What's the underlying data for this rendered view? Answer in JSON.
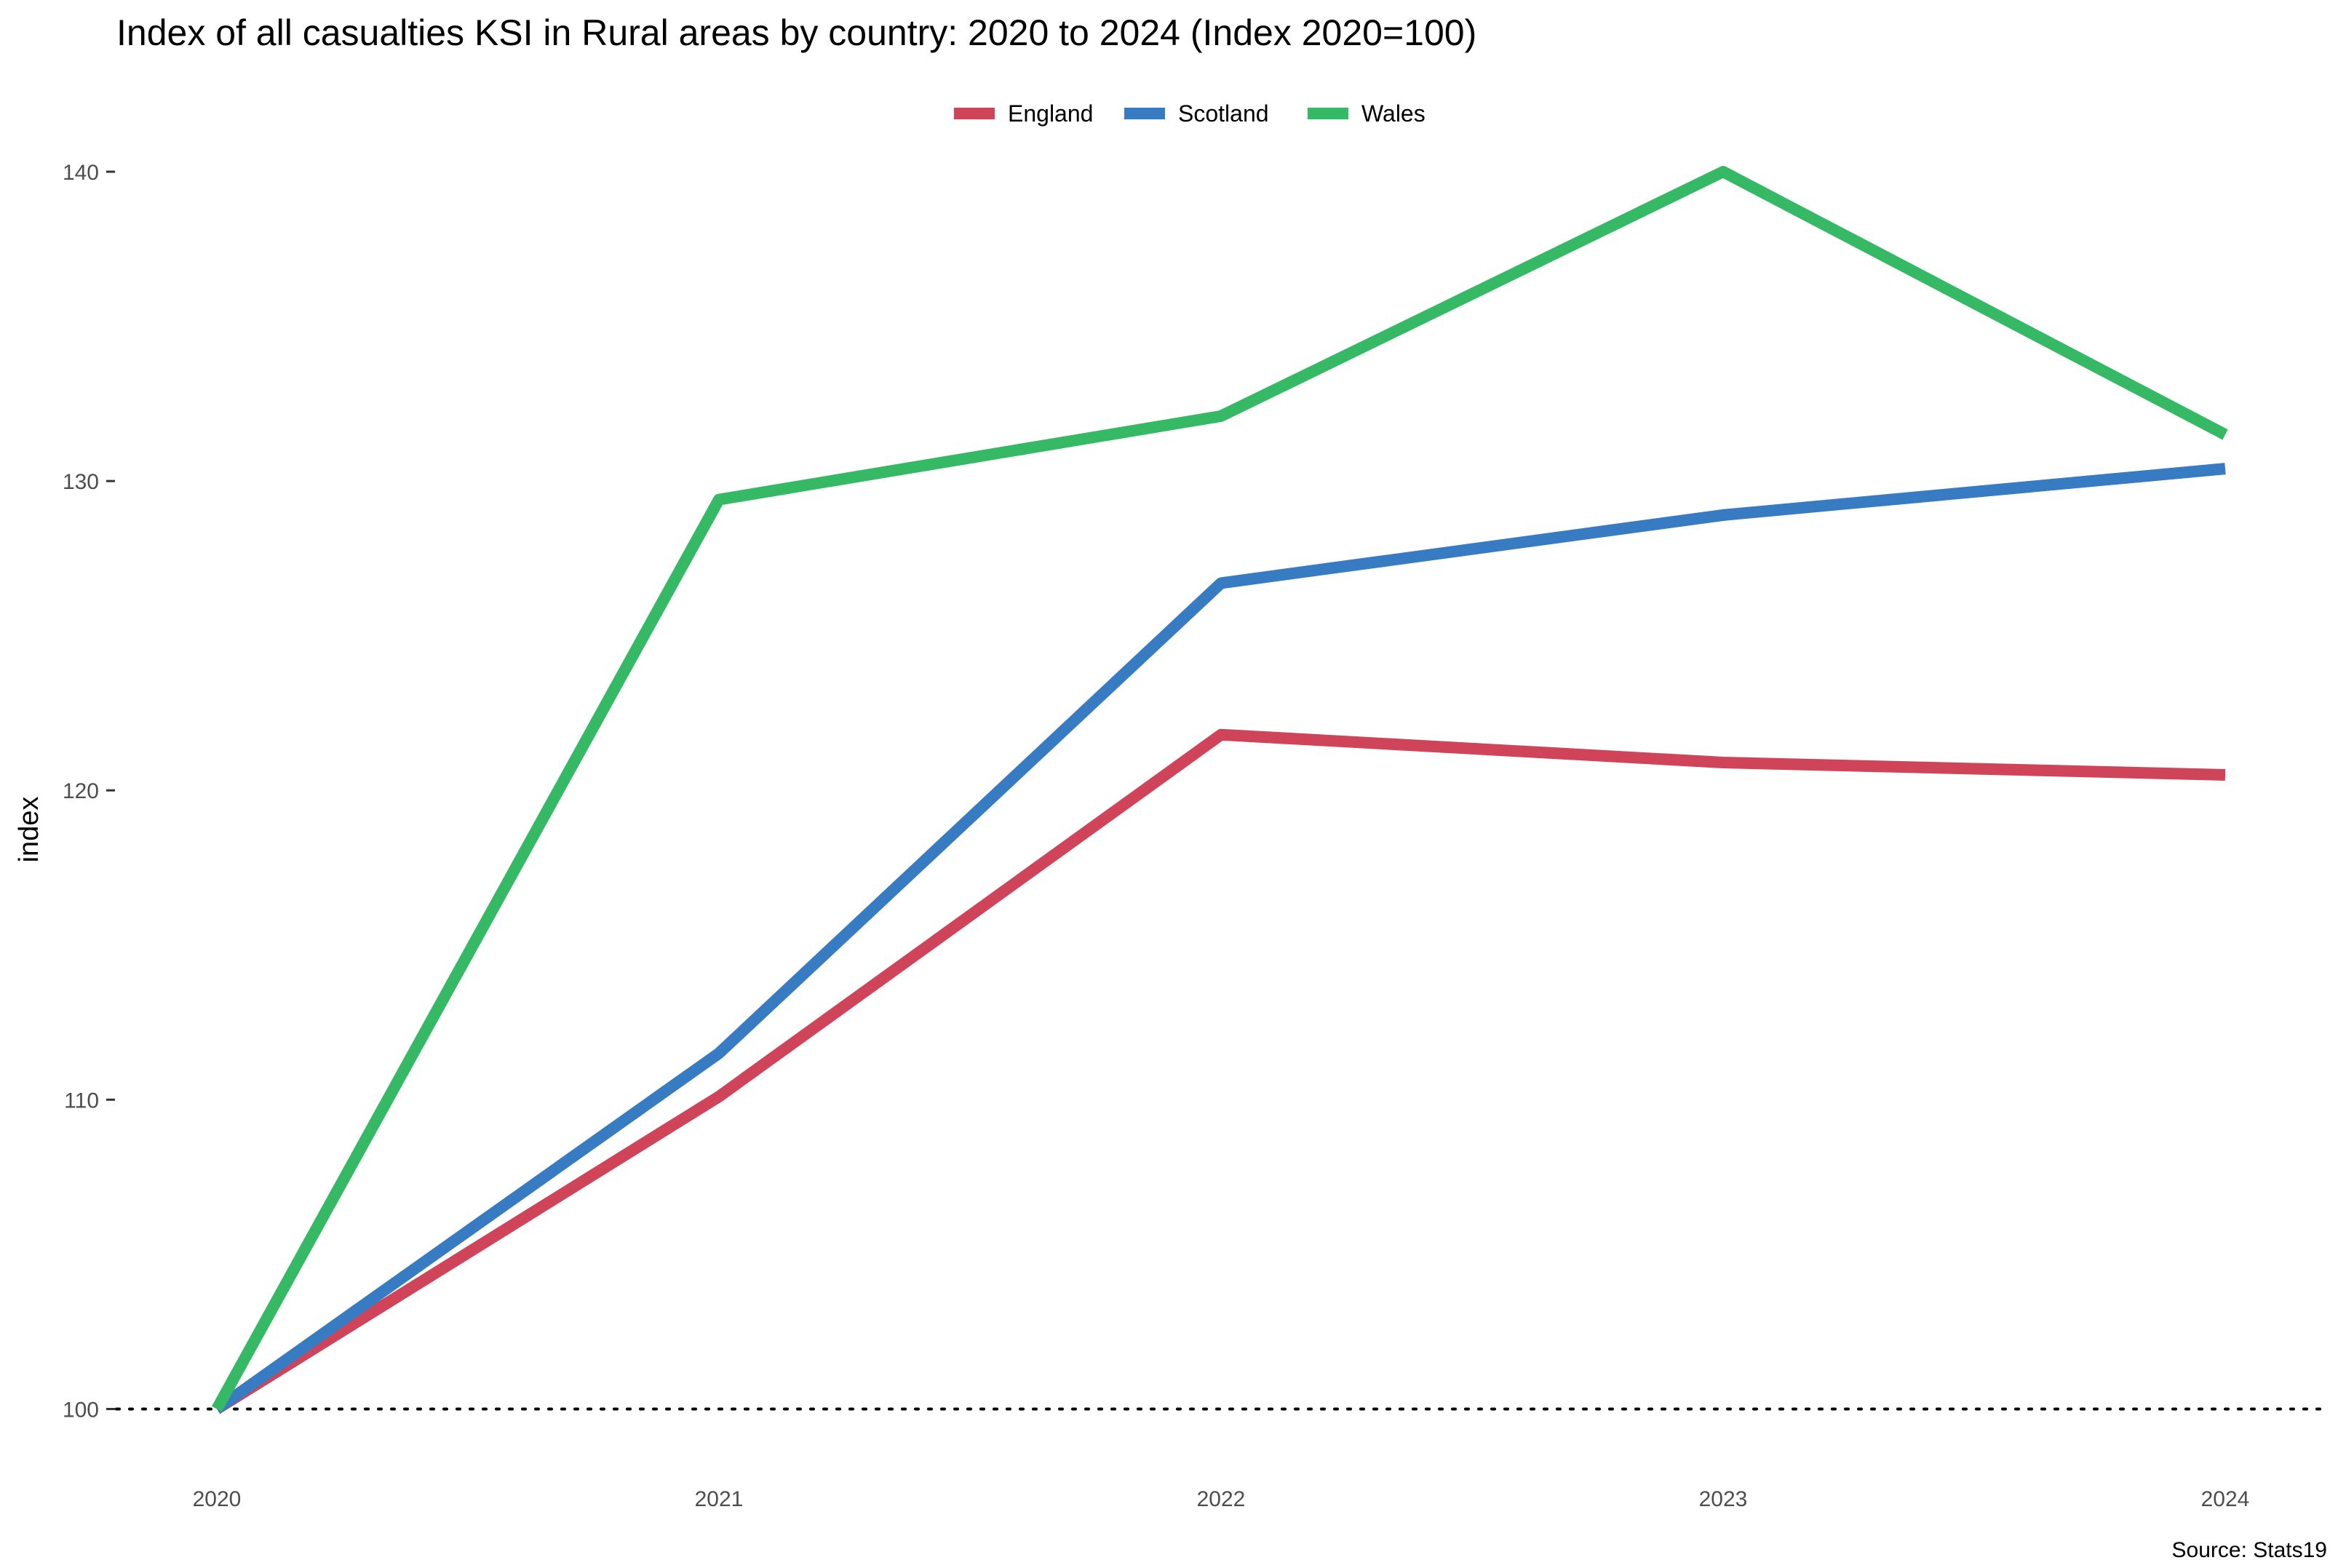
{
  "chart_data": {
    "type": "line",
    "title": "Index of all casualties KSI in Rural areas by country: 2020 to 2024 (Index 2020=100)",
    "xlabel": "",
    "ylabel": "index",
    "caption": "Source: Stats19",
    "x": [
      "2020",
      "2021",
      "2022",
      "2023",
      "2024"
    ],
    "yticks": [
      100,
      110,
      120,
      130,
      140
    ],
    "ylim": [
      97.8,
      140.8
    ],
    "legend_position": "top",
    "grid": false,
    "reference_line": {
      "value": 100,
      "style": "dotted"
    },
    "series": [
      {
        "name": "England",
        "color": "#d04459",
        "values": [
          100,
          110.1,
          121.8,
          120.9,
          120.5
        ]
      },
      {
        "name": "Scotland",
        "color": "#377bc2",
        "values": [
          100,
          111.5,
          126.7,
          128.9,
          130.4
        ]
      },
      {
        "name": "Wales",
        "color": "#35b965",
        "values": [
          100,
          129.4,
          132.1,
          140.0,
          131.5
        ]
      }
    ]
  }
}
